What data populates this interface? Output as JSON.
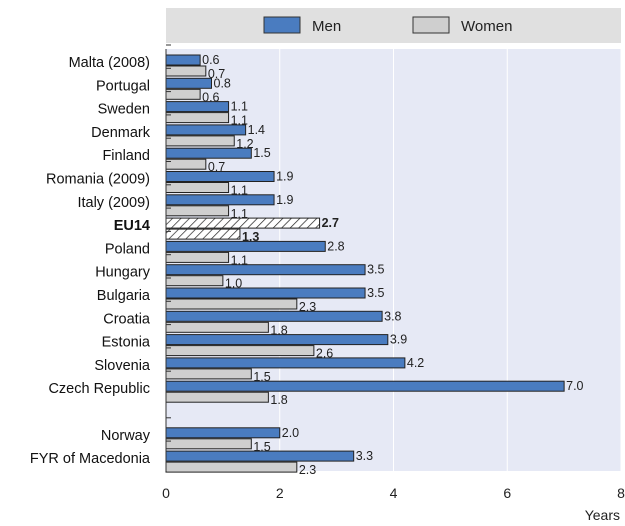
{
  "chart_data": {
    "type": "bar",
    "orientation": "horizontal",
    "categories": [
      "Malta (2008)",
      "Portugal",
      "Sweden",
      "Denmark",
      "Finland",
      "Romania (2009)",
      "Italy (2009)",
      "EU14",
      "Poland",
      "Hungary",
      "Bulgaria",
      "Croatia",
      "Estonia",
      "Slovenia",
      "Czech Republic",
      "",
      "Norway",
      "FYR of Macedonia"
    ],
    "highlight_category": "EU14",
    "series": [
      {
        "name": "Men",
        "color": "#4a7cc0",
        "values": [
          0.6,
          0.8,
          1.1,
          1.4,
          1.5,
          1.9,
          1.9,
          2.7,
          2.8,
          3.5,
          3.5,
          3.8,
          3.9,
          4.2,
          7.0,
          null,
          2.0,
          3.3
        ]
      },
      {
        "name": "Women",
        "color": "#cfcfcf",
        "values": [
          0.7,
          0.6,
          1.1,
          1.2,
          0.7,
          1.1,
          1.1,
          1.3,
          1.1,
          1.0,
          2.3,
          1.8,
          2.6,
          1.5,
          1.8,
          null,
          1.5,
          2.3
        ]
      }
    ],
    "labels": {
      "Men": [
        "0.6",
        "0.8",
        "1.1",
        "1.4",
        "1.5",
        "1.9",
        "1.9",
        "2.7",
        "2.8",
        "3.5",
        "3.5",
        "3.8",
        "3.9",
        "4.2",
        "7.0",
        "",
        "2.0",
        "3.3"
      ],
      "Women": [
        "0.7",
        "0.6",
        "1.1",
        "1.2",
        "0.7",
        "1.1",
        "1.1",
        "1.3",
        "1.1",
        "1.0",
        "2.3",
        "1.8",
        "2.6",
        "1.5",
        "1.8",
        "",
        "1.5",
        "2.3"
      ]
    },
    "xlim": [
      0,
      8
    ],
    "xticks": [
      "0",
      "2",
      "4",
      "6",
      "8"
    ],
    "xlabel": "Years",
    "legend": {
      "position": "top",
      "entries": [
        "Men",
        "Women"
      ]
    },
    "plot_background": "#e6e9f5",
    "grid": "vertical"
  }
}
